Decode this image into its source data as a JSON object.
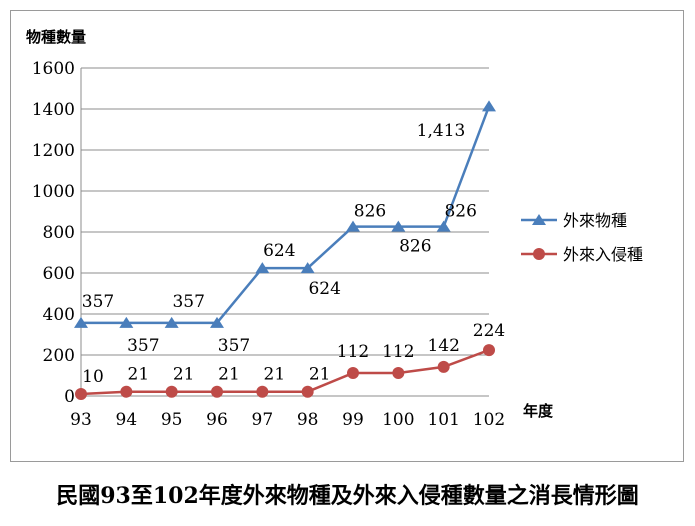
{
  "caption": "民國93至102年度外來物種及外來入侵種數量之消長情形圖",
  "chart_data": {
    "type": "line",
    "ylabel": "物種數量",
    "xlabel": "年度",
    "categories": [
      "93",
      "94",
      "95",
      "96",
      "97",
      "98",
      "99",
      "100",
      "101",
      "102"
    ],
    "ylim": [
      0,
      1600
    ],
    "yticks": [
      "0",
      "200",
      "400",
      "600",
      "800",
      "1000",
      "1200",
      "1400",
      "1600"
    ],
    "grid": "horizontal",
    "legend_position": "right",
    "series": [
      {
        "name": "外來物種",
        "values": [
          357,
          357,
          357,
          357,
          624,
          624,
          826,
          826,
          826,
          1413
        ],
        "labels": [
          "357",
          "357",
          "357",
          "357",
          "624",
          "624",
          "826",
          "826",
          "826",
          "1,413"
        ],
        "color": "#4a7ebb",
        "marker": "triangle"
      },
      {
        "name": "外來入侵種",
        "values": [
          10,
          21,
          21,
          21,
          21,
          21,
          112,
          112,
          142,
          224
        ],
        "labels": [
          "10",
          "21",
          "21",
          "21",
          "21",
          "21",
          "112",
          "112",
          "142",
          "224"
        ],
        "color": "#be4b48",
        "marker": "circle"
      }
    ]
  }
}
